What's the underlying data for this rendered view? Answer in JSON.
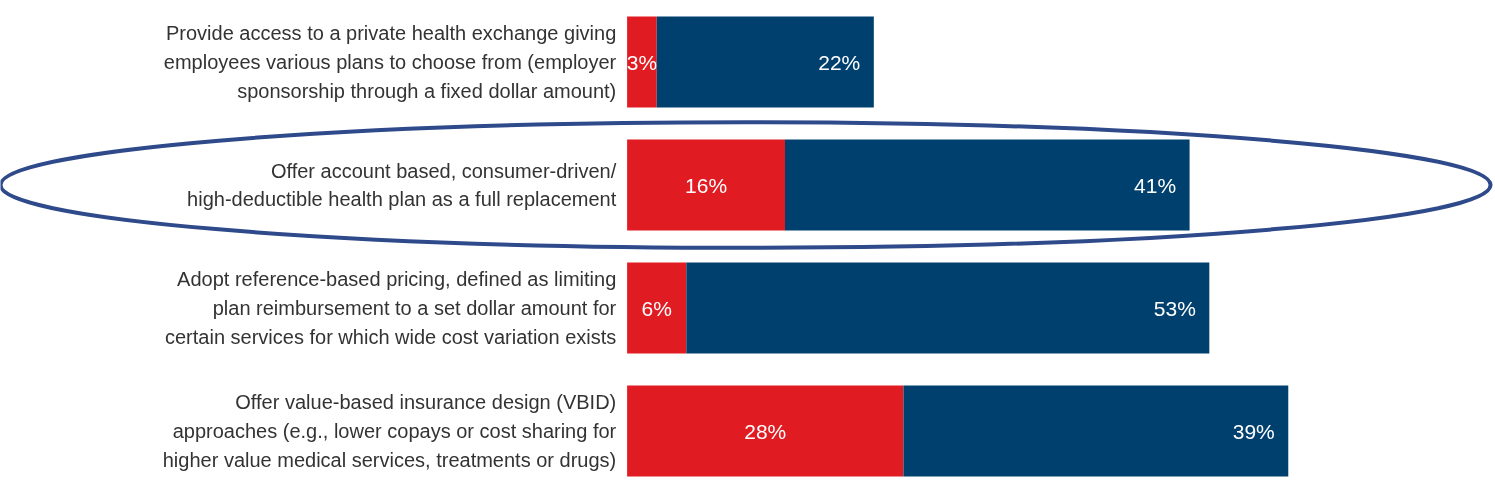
{
  "chart_data": {
    "type": "bar",
    "orientation": "horizontal",
    "stacked": true,
    "categories": [
      "Provide access to a private health exchange giving employees various plans to choose from (employer sponsorship through a fixed dollar amount)",
      "Offer account based, consumer-driven/ high-deductible health plan as a full replacement",
      "Adopt reference-based pricing, defined as limiting plan reimbursement to a set dollar amount for certain services for which wide cost variation exists",
      "Offer value-based insurance design (VBID) approaches (e.g., lower copays or cost sharing for higher value medical services, treatments or drugs)"
    ],
    "series": [
      {
        "color": "#e11b22",
        "values": [
          3,
          16,
          6,
          28
        ],
        "value_labels": [
          "3%",
          "16%",
          "6%",
          "28%"
        ]
      },
      {
        "color": "#00406e",
        "values": [
          22,
          41,
          53,
          39
        ],
        "value_labels": [
          "22%",
          "41%",
          "53%",
          "39%"
        ]
      }
    ]
  }
}
